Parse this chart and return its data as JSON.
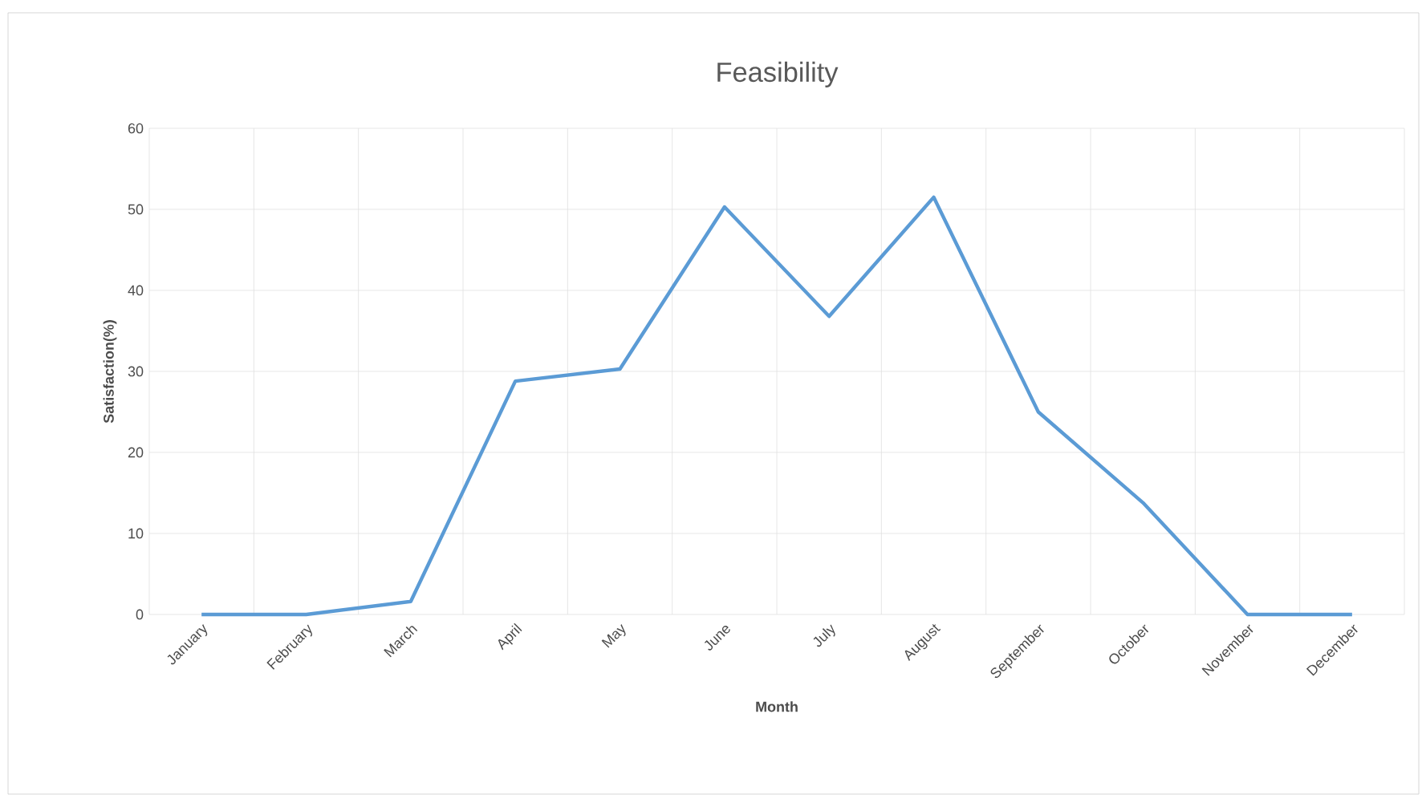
{
  "chart_data": {
    "type": "line",
    "title": "Feasibility",
    "xlabel": "Month",
    "ylabel": "Satisfaction(%)",
    "categories": [
      "January",
      "February",
      "March",
      "April",
      "May",
      "June",
      "July",
      "August",
      "September",
      "October",
      "November",
      "December"
    ],
    "series": [
      {
        "color": "#5b9bd5",
        "values": [
          0,
          0,
          1.6,
          28.8,
          30.3,
          50.3,
          36.8,
          51.5,
          25,
          13.8,
          0,
          0
        ]
      }
    ],
    "ylim": [
      0,
      60
    ],
    "yticks": [
      0,
      10,
      20,
      30,
      40,
      50,
      60
    ],
    "grid": true,
    "marker": "none",
    "line_style": "solid"
  }
}
